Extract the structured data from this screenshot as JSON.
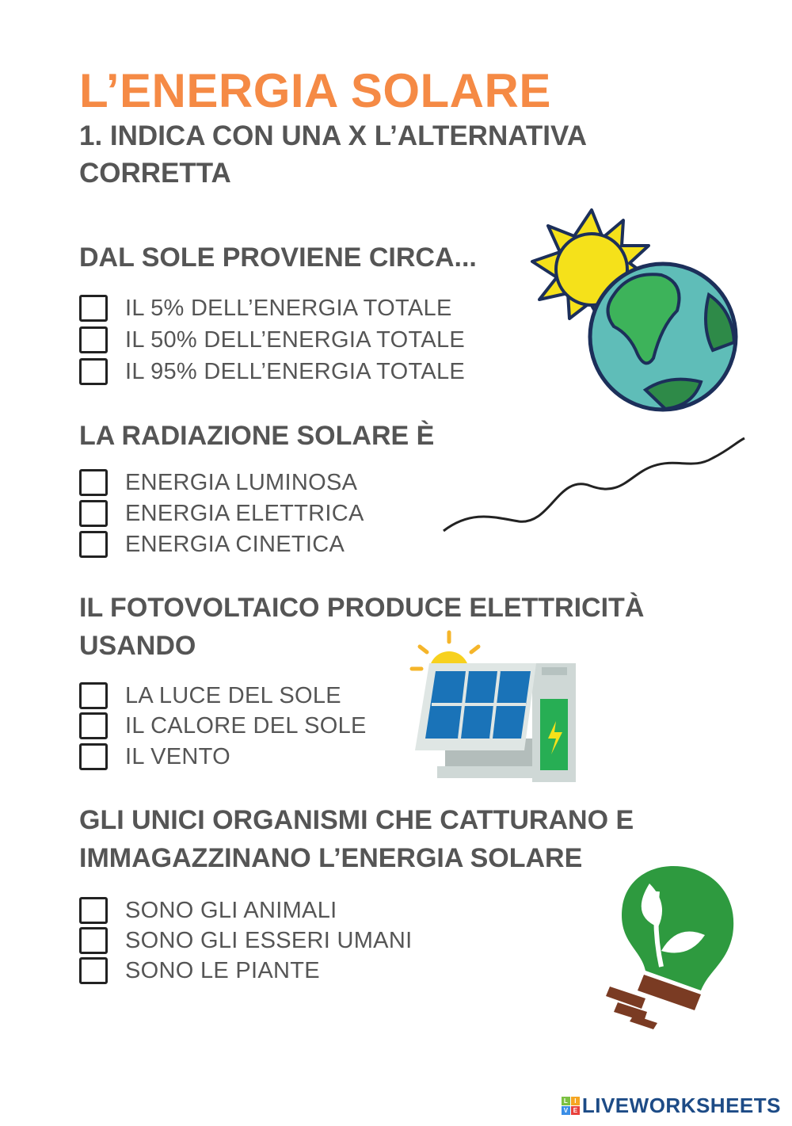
{
  "title": "L’ENERGIA SOLARE",
  "instruction": [
    "1. INDICA CON UNA X L’ALTERNATIVA",
    "CORRETTA"
  ],
  "questions": [
    {
      "lines": [
        "DAL SOLE PROVIENE CIRCA..."
      ],
      "options": [
        "IL 5% DELL’ENERGIA TOTALE",
        "IL 50% DELL’ENERGIA TOTALE",
        "IL 95% DELL’ENERGIA TOTALE"
      ]
    },
    {
      "lines": [
        "LA RADIAZIONE SOLARE È"
      ],
      "options": [
        "ENERGIA LUMINOSA",
        "ENERGIA ELETTRICA",
        "ENERGIA CINETICA"
      ]
    },
    {
      "lines": [
        "IL FOTOVOLTAICO PRODUCE ELETTRICITÀ",
        "USANDO"
      ],
      "options": [
        "LA LUCE DEL SOLE",
        "IL CALORE DEL SOLE",
        "IL VENTO"
      ]
    },
    {
      "lines": [
        "GLI UNICI ORGANISMI CHE CATTURANO E",
        "IMMAGAZZINANO L’ENERGIA SOLARE"
      ],
      "options": [
        "SONO GLI ANIMALI",
        "SONO GLI ESSERI UMANI",
        "SONO LE PIANTE"
      ]
    }
  ],
  "footer": {
    "logo_letters": [
      "L",
      "I",
      "V",
      "E"
    ],
    "logo_text": "LIVEWORKSHEETS"
  },
  "colors": {
    "title": "#f58a45",
    "text": "#555555",
    "logo": "#1d4b86"
  }
}
